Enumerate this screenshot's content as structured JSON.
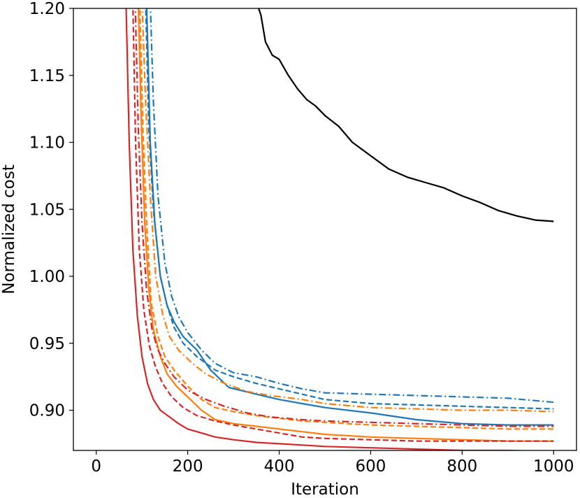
{
  "chart_data": {
    "type": "line",
    "title": "",
    "xlabel": "Iteration",
    "ylabel": "Normalized cost",
    "xlim": [
      -50,
      1050
    ],
    "ylim": [
      0.87,
      1.2
    ],
    "xticks": [
      0,
      200,
      400,
      600,
      800,
      1000
    ],
    "xtick_labels": [
      "0",
      "200",
      "400",
      "600",
      "800",
      "1000"
    ],
    "yticks": [
      0.9,
      0.95,
      1.0,
      1.05,
      1.1,
      1.15,
      1.2
    ],
    "ytick_labels": [
      "0.90",
      "0.95",
      "1.00",
      "1.05",
      "1.10",
      "1.15",
      "1.20"
    ],
    "grid": false,
    "legend": "none",
    "series": [
      {
        "color": "#000000",
        "style": "solid",
        "x": [
          350,
          360,
          370,
          385,
          400,
          420,
          440,
          460,
          480,
          500,
          530,
          560,
          600,
          640,
          680,
          720,
          760,
          800,
          840,
          880,
          920,
          960,
          1000
        ],
        "y": [
          1.205,
          1.195,
          1.175,
          1.165,
          1.162,
          1.15,
          1.14,
          1.132,
          1.127,
          1.12,
          1.112,
          1.1,
          1.09,
          1.08,
          1.074,
          1.07,
          1.066,
          1.06,
          1.055,
          1.049,
          1.045,
          1.042,
          1.041
        ]
      },
      {
        "color": "#1f77b4",
        "style": "dashdot",
        "x": [
          118,
          125,
          135,
          150,
          165,
          180,
          200,
          230,
          260,
          300,
          350,
          400,
          450,
          500,
          600,
          700,
          800,
          900,
          1000
        ],
        "y": [
          1.205,
          1.13,
          1.06,
          1.01,
          0.985,
          0.97,
          0.958,
          0.945,
          0.935,
          0.928,
          0.925,
          0.92,
          0.916,
          0.913,
          0.912,
          0.911,
          0.91,
          0.909,
          0.906
        ]
      },
      {
        "color": "#1f77b4",
        "style": "dashed",
        "x": [
          108,
          115,
          125,
          140,
          155,
          170,
          190,
          220,
          260,
          300,
          350,
          400,
          450,
          500,
          600,
          700,
          800,
          900,
          1000
        ],
        "y": [
          1.205,
          1.11,
          1.05,
          1.0,
          0.978,
          0.962,
          0.95,
          0.94,
          0.93,
          0.925,
          0.92,
          0.916,
          0.912,
          0.908,
          0.905,
          0.904,
          0.903,
          0.902,
          0.901
        ]
      },
      {
        "color": "#1f77b4",
        "style": "solid",
        "x": [
          110,
          118,
          128,
          140,
          155,
          170,
          190,
          220,
          250,
          290,
          350,
          400,
          450,
          500,
          600,
          700,
          800,
          900,
          1000
        ],
        "y": [
          1.205,
          1.1,
          1.04,
          1.0,
          0.978,
          0.966,
          0.955,
          0.945,
          0.93,
          0.917,
          0.912,
          0.908,
          0.905,
          0.902,
          0.898,
          0.893,
          0.89,
          0.889,
          0.889
        ]
      },
      {
        "color": "#ff7f0e",
        "style": "dashdot",
        "x": [
          100,
          108,
          118,
          130,
          145,
          160,
          180,
          210,
          240,
          280,
          330,
          380,
          450,
          500,
          600,
          700,
          800,
          900,
          1000
        ],
        "y": [
          1.205,
          1.13,
          1.06,
          1.0,
          0.972,
          0.955,
          0.945,
          0.935,
          0.927,
          0.92,
          0.914,
          0.911,
          0.908,
          0.905,
          0.902,
          0.901,
          0.9,
          0.9,
          0.899
        ]
      },
      {
        "color": "#ff7f0e",
        "style": "dashed",
        "x": [
          95,
          102,
          110,
          120,
          135,
          150,
          170,
          200,
          230,
          260,
          300,
          350,
          400,
          450,
          500,
          600,
          700,
          800,
          900,
          1000
        ],
        "y": [
          1.205,
          1.11,
          1.04,
          0.98,
          0.955,
          0.94,
          0.93,
          0.918,
          0.908,
          0.902,
          0.899,
          0.896,
          0.894,
          0.892,
          0.891,
          0.889,
          0.888,
          0.887,
          0.886,
          0.886
        ]
      },
      {
        "color": "#ff7f0e",
        "style": "solid",
        "x": [
          92,
          98,
          106,
          115,
          125,
          140,
          155,
          175,
          200,
          230,
          260,
          300,
          350,
          400,
          450,
          500,
          600,
          700,
          800,
          900,
          1000
        ],
        "y": [
          1.205,
          1.12,
          1.04,
          0.99,
          0.96,
          0.94,
          0.927,
          0.918,
          0.91,
          0.9,
          0.893,
          0.89,
          0.888,
          0.886,
          0.884,
          0.882,
          0.88,
          0.879,
          0.878,
          0.877,
          0.877
        ]
      },
      {
        "color": "#d62728",
        "style": "dashdot",
        "x": [
          85,
          92,
          100,
          110,
          122,
          135,
          150,
          170,
          200,
          240,
          280,
          330,
          380,
          450,
          500,
          600,
          700,
          800,
          900,
          1000
        ],
        "y": [
          1.205,
          1.11,
          1.04,
          0.99,
          0.96,
          0.945,
          0.935,
          0.925,
          0.915,
          0.908,
          0.903,
          0.898,
          0.895,
          0.893,
          0.892,
          0.891,
          0.89,
          0.889,
          0.888,
          0.888
        ]
      },
      {
        "color": "#d62728",
        "style": "dashed",
        "x": [
          80,
          86,
          94,
          104,
          116,
          130,
          145,
          165,
          190,
          220,
          260,
          300,
          350,
          400,
          450,
          500,
          600,
          700,
          800,
          900,
          1000
        ],
        "y": [
          1.205,
          1.1,
          1.02,
          0.975,
          0.948,
          0.932,
          0.92,
          0.91,
          0.902,
          0.896,
          0.892,
          0.889,
          0.886,
          0.883,
          0.88,
          0.879,
          0.878,
          0.877,
          0.877,
          0.877,
          0.877
        ]
      },
      {
        "color": "#d62728",
        "style": "solid",
        "x": [
          65,
          72,
          80,
          90,
          100,
          112,
          125,
          140,
          160,
          180,
          200,
          230,
          260,
          300,
          350,
          400,
          450,
          500,
          600,
          700,
          800,
          900,
          1000
        ],
        "y": [
          1.205,
          1.1,
          1.02,
          0.97,
          0.94,
          0.92,
          0.908,
          0.9,
          0.895,
          0.89,
          0.886,
          0.883,
          0.88,
          0.878,
          0.876,
          0.875,
          0.874,
          0.873,
          0.872,
          0.871,
          0.87,
          0.87,
          0.869
        ]
      }
    ]
  }
}
